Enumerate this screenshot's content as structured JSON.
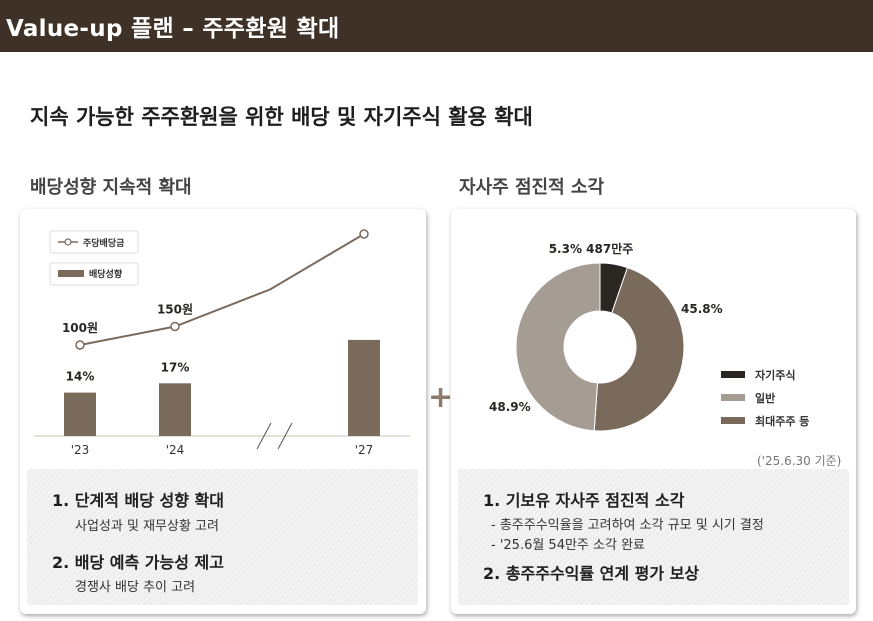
{
  "header": {
    "title": "Value-up 플랜 – 주주환원 확대"
  },
  "subtitle": "지속 가능한 주주환원을 위한 배당 및 자기주식 활용 확대",
  "left": {
    "section_title": "배당성향 지속적 확대",
    "items": [
      {
        "title": "1. 단계적 배당 성향 확대",
        "details": [
          "사업성과 및 재무상황 고려"
        ]
      },
      {
        "title": "2. 배당 예측 가능성 제고",
        "details": [
          "경쟁사 배당 추이 고려"
        ]
      }
    ]
  },
  "right": {
    "section_title": "자사주 점진적 소각",
    "note": "('25.6.30 기준)",
    "items": [
      {
        "title": "1. 기보유 자사주 점진적 소각",
        "details": [
          "- 총주주수익율을 고려하여 소각 규모 및 시기 결정",
          "- '25.6월 54만주 소각 완료"
        ]
      },
      {
        "title": "2. 총주주수익률 연계 평가 보상",
        "details": []
      }
    ]
  },
  "plus_sign": "+",
  "colors": {
    "brown": "#7a6a5c",
    "dark": "#2a2622",
    "gray": "#a59d94",
    "header": "#3d3128"
  },
  "chart_data": [
    {
      "type": "bar",
      "categories": [
        "'23",
        "'24",
        "",
        "'27"
      ],
      "axis_break_between": [
        "'24",
        "'27"
      ],
      "series": [
        {
          "name": "배당성향",
          "kind": "bar",
          "values": [
            14,
            17,
            null,
            31
          ],
          "labels": [
            "14%",
            "17%",
            "",
            ""
          ]
        },
        {
          "name": "주당배당금",
          "kind": "line",
          "values": [
            100,
            150,
            250,
            400
          ],
          "labels": [
            "100원",
            "150원",
            "",
            ""
          ]
        }
      ],
      "legend": "top-left"
    },
    {
      "type": "pie",
      "donut": true,
      "slices": [
        {
          "name": "자기주식",
          "value": 5.3,
          "label": "5.3% 487만주",
          "color": "#2a2622"
        },
        {
          "name": "최대주주 등",
          "value": 45.8,
          "label": "45.8%",
          "color": "#7a6a5c"
        },
        {
          "name": "일반",
          "value": 48.9,
          "label": "48.9%",
          "color": "#a59d94"
        }
      ],
      "legend_order": [
        "자기주식",
        "일반",
        "최대주주 등"
      ],
      "legend": "right"
    }
  ]
}
